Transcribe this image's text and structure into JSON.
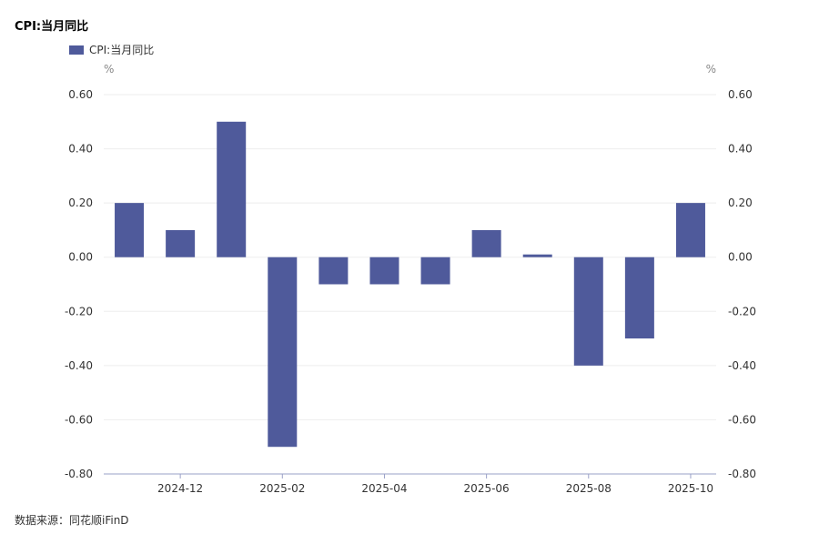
{
  "title": "CPI:当月同比",
  "source": "数据来源：同花顺iFinD",
  "chart_data": {
    "type": "bar",
    "legend": [
      "CPI:当月同比"
    ],
    "categories": [
      "2024-11",
      "2024-12",
      "2025-01",
      "2025-02",
      "2025-03",
      "2025-04",
      "2025-05",
      "2025-06",
      "2025-07",
      "2025-08",
      "2025-09",
      "2025-10"
    ],
    "x_tick_labels": [
      "2024-12",
      "2025-02",
      "2025-04",
      "2025-06",
      "2025-08",
      "2025-10"
    ],
    "series": [
      {
        "name": "CPI:当月同比",
        "values": [
          0.2,
          0.1,
          0.5,
          -0.7,
          -0.1,
          -0.1,
          -0.1,
          0.1,
          0.0,
          -0.4,
          -0.3,
          0.2
        ]
      }
    ],
    "ylabel_left": "%",
    "ylabel_right": "%",
    "ylim": [
      -0.8,
      0.6
    ],
    "y_ticks": [
      "0.60",
      "0.40",
      "0.20",
      "0.00",
      "-0.20",
      "-0.40",
      "-0.60",
      "-0.80"
    ],
    "grid": true,
    "legend_position": "top-left"
  },
  "colors": {
    "bar": "#4f5a9b",
    "grid": "#eeeeee",
    "axis": "#9aa0c7"
  }
}
